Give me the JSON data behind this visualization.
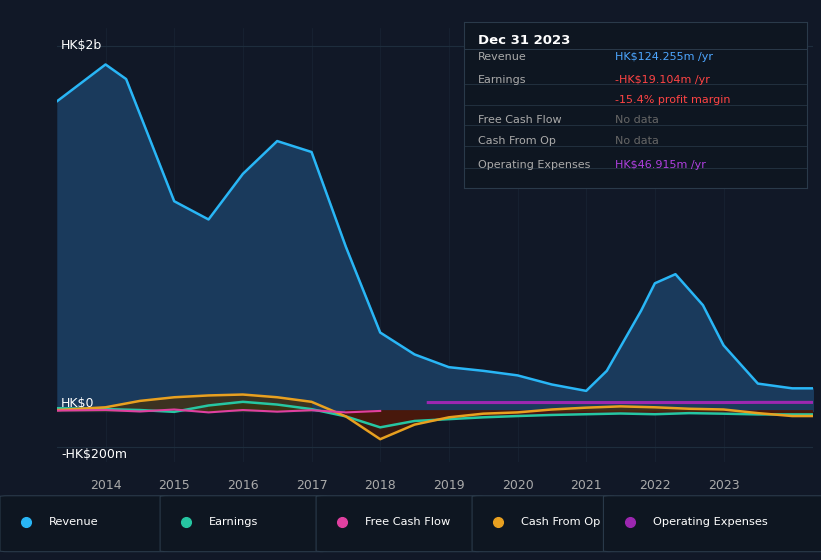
{
  "background_color": "#111827",
  "plot_bg_color": "#111827",
  "grid_color": "#1e2d3d",
  "title_box": {
    "title": "Dec 31 2023",
    "rows": [
      {
        "label": "Revenue",
        "value": "HK$124.255m /yr",
        "value_color": "#4da6ff",
        "label_color": "#aaaaaa"
      },
      {
        "label": "Earnings",
        "value": "-HK$19.104m /yr",
        "value_color": "#ff4444",
        "label_color": "#aaaaaa"
      },
      {
        "label": "",
        "value": "-15.4% profit margin",
        "value_color": "#ff4444",
        "label_color": "#aaaaaa"
      },
      {
        "label": "Free Cash Flow",
        "value": "No data",
        "value_color": "#666666",
        "label_color": "#aaaaaa"
      },
      {
        "label": "Cash From Op",
        "value": "No data",
        "value_color": "#666666",
        "label_color": "#aaaaaa"
      },
      {
        "label": "Operating Expenses",
        "value": "HK$46.915m /yr",
        "value_color": "#b040e0",
        "label_color": "#aaaaaa"
      }
    ]
  },
  "ylabel_hk2b": "HK$2b",
  "ylabel_hk0": "HK$0",
  "ylabel_hk200m": "-HK$200m",
  "ylim": [
    -280000000,
    2100000000
  ],
  "xlim": [
    2013.3,
    2024.3
  ],
  "ytick_vals": [
    -200000000,
    0,
    2000000000
  ],
  "xticks": [
    2014,
    2015,
    2016,
    2017,
    2018,
    2019,
    2020,
    2021,
    2022,
    2023
  ],
  "series": {
    "revenue": {
      "color": "#29b6f6",
      "fill_color": "#1a3a5c",
      "label": "Revenue",
      "x": [
        2013.3,
        2014.0,
        2014.3,
        2015.0,
        2015.5,
        2016.0,
        2016.5,
        2017.0,
        2017.5,
        2018.0,
        2018.5,
        2019.0,
        2019.5,
        2020.0,
        2020.5,
        2021.0,
        2021.3,
        2021.8,
        2022.0,
        2022.3,
        2022.7,
        2023.0,
        2023.5,
        2024.0,
        2024.3
      ],
      "y": [
        1700000000,
        1900000000,
        1820000000,
        1150000000,
        1050000000,
        1300000000,
        1480000000,
        1420000000,
        900000000,
        430000000,
        310000000,
        240000000,
        220000000,
        195000000,
        145000000,
        110000000,
        220000000,
        550000000,
        700000000,
        750000000,
        580000000,
        360000000,
        150000000,
        124000000,
        124000000
      ]
    },
    "earnings": {
      "color": "#26c6a2",
      "label": "Earnings",
      "x": [
        2013.3,
        2014.0,
        2014.5,
        2015.0,
        2015.5,
        2016.0,
        2016.5,
        2017.0,
        2017.5,
        2018.0,
        2018.5,
        2019.0,
        2019.5,
        2020.0,
        2020.5,
        2021.0,
        2021.5,
        2022.0,
        2022.5,
        2023.0,
        2023.5,
        2024.0,
        2024.3
      ],
      "y": [
        15000000,
        10000000,
        5000000,
        -5000000,
        30000000,
        50000000,
        35000000,
        10000000,
        -30000000,
        -90000000,
        -55000000,
        -45000000,
        -35000000,
        -28000000,
        -22000000,
        -18000000,
        -14000000,
        -18000000,
        -12000000,
        -15000000,
        -19000000,
        -19104000,
        -19104000
      ]
    },
    "cash_from_op": {
      "color": "#e8a020",
      "label": "Cash From Op",
      "x": [
        2013.3,
        2014.0,
        2014.5,
        2015.0,
        2015.5,
        2016.0,
        2016.5,
        2017.0,
        2017.5,
        2018.0,
        2018.5,
        2019.0,
        2019.5,
        2020.0,
        2020.5,
        2021.0,
        2021.5,
        2022.0,
        2022.5,
        2023.0,
        2023.5,
        2024.0,
        2024.3
      ],
      "y": [
        5000000,
        20000000,
        55000000,
        75000000,
        85000000,
        90000000,
        75000000,
        50000000,
        -30000000,
        -155000000,
        -75000000,
        -35000000,
        -15000000,
        -8000000,
        8000000,
        18000000,
        25000000,
        20000000,
        12000000,
        8000000,
        -12000000,
        -28000000,
        -28000000
      ]
    },
    "free_cash_flow": {
      "color": "#e040a0",
      "label": "Free Cash Flow",
      "x": [
        2013.3,
        2014.0,
        2014.5,
        2015.0,
        2015.5,
        2016.0,
        2016.5,
        2017.0,
        2017.5,
        2018.0
      ],
      "y": [
        2000000,
        5000000,
        -3000000,
        8000000,
        -8000000,
        5000000,
        -4000000,
        4000000,
        -8000000,
        0
      ]
    },
    "operating_expenses": {
      "color": "#9c27b0",
      "label": "Operating Expenses",
      "x": [
        2018.7,
        2019.0,
        2019.5,
        2020.0,
        2020.5,
        2021.0,
        2021.5,
        2022.0,
        2022.5,
        2023.0,
        2023.5,
        2024.0,
        2024.3
      ],
      "y": [
        46000000,
        46000000,
        46000000,
        46000000,
        46000000,
        46000000,
        46000000,
        46000000,
        46000000,
        46000000,
        46915000,
        46915000,
        46915000
      ]
    }
  },
  "legend": [
    {
      "label": "Revenue",
      "color": "#29b6f6"
    },
    {
      "label": "Earnings",
      "color": "#26c6a2"
    },
    {
      "label": "Free Cash Flow",
      "color": "#e040a0"
    },
    {
      "label": "Cash From Op",
      "color": "#e8a020"
    },
    {
      "label": "Operating Expenses",
      "color": "#9c27b0"
    }
  ]
}
